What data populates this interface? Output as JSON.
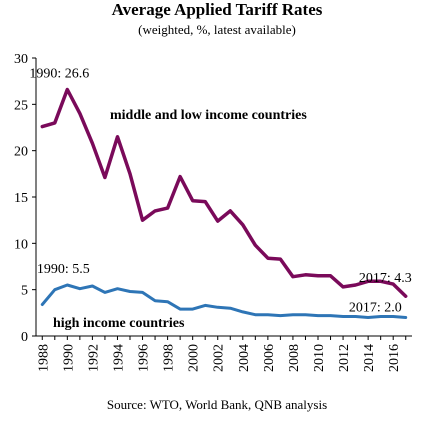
{
  "chart_data": {
    "type": "line",
    "title": "Average Applied Tariff Rates",
    "subtitle": "(weighted, %, latest available)",
    "source": "Source: WTO, World Bank, QNB analysis",
    "xlabel": "",
    "ylabel": "",
    "ylim": [
      0,
      30
    ],
    "yticks": [
      "0",
      "5",
      "10",
      "15",
      "20",
      "25",
      "30"
    ],
    "xticks": [
      "1988",
      "1990",
      "1992",
      "1994",
      "1996",
      "1998",
      "2000",
      "2002",
      "2004",
      "2006",
      "2008",
      "2010",
      "2012",
      "2014",
      "2016"
    ],
    "grid": false,
    "x": [
      1988,
      1989,
      1990,
      1991,
      1992,
      1993,
      1994,
      1995,
      1996,
      1997,
      1998,
      1999,
      2000,
      2001,
      2002,
      2003,
      2004,
      2005,
      2006,
      2007,
      2008,
      2009,
      2010,
      2011,
      2012,
      2013,
      2014,
      2015,
      2016,
      2017
    ],
    "series": [
      {
        "name": "middle and low income countries",
        "color": "#7a0a5a",
        "values": [
          22.6,
          23.0,
          26.6,
          24.0,
          20.8,
          17.1,
          21.5,
          17.5,
          12.5,
          13.5,
          13.8,
          17.2,
          14.6,
          14.5,
          12.4,
          13.5,
          12.0,
          9.8,
          8.4,
          8.3,
          6.4,
          6.6,
          6.5,
          6.5,
          5.3,
          5.5,
          5.9,
          5.9,
          5.6,
          4.3
        ]
      },
      {
        "name": "high income countries",
        "color": "#2e75b6",
        "values": [
          3.4,
          5.0,
          5.5,
          5.1,
          5.4,
          4.7,
          5.1,
          4.8,
          4.7,
          3.8,
          3.7,
          2.9,
          2.9,
          3.3,
          3.1,
          3.0,
          2.6,
          2.3,
          2.3,
          2.2,
          2.3,
          2.3,
          2.2,
          2.2,
          2.1,
          2.1,
          2.0,
          2.1,
          2.1,
          2.0
        ]
      }
    ],
    "annotations": [
      {
        "text": "1990: 26.6",
        "series": 0,
        "x": 1990
      },
      {
        "text": "1990: 5.5",
        "series": 1,
        "x": 1990
      },
      {
        "text": "2017: 4.3",
        "series": 0,
        "x": 2017
      },
      {
        "text": "2017: 2.0",
        "series": 1,
        "x": 2017
      }
    ]
  }
}
